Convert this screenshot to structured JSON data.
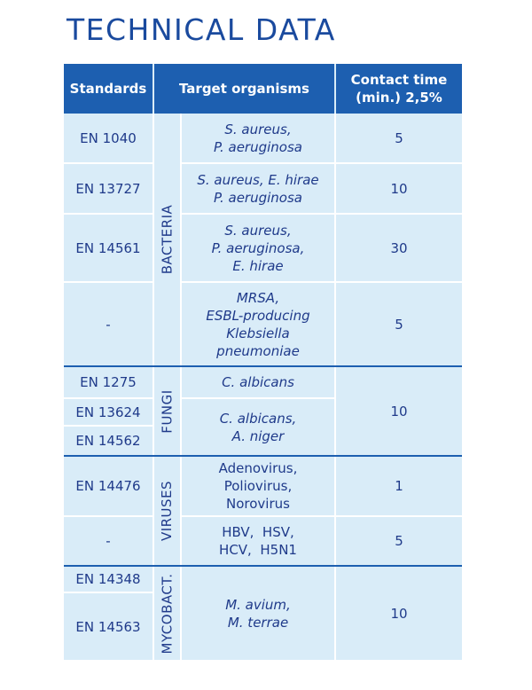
{
  "title": "TECHNICAL DATA",
  "headers": {
    "standards": "Standards",
    "target": "Target organisms",
    "contact_line1": "Contact time",
    "contact_line2": "(min.) 2,5%"
  },
  "groups": {
    "bacteria": "BACTERIA",
    "fungi": "FUNGI",
    "viruses": "VIRUSES",
    "mycobact": "MYCOBACT."
  },
  "rows": {
    "r1": {
      "standard": "EN 1040",
      "organisms": [
        "S. aureus,",
        "P. aeruginosa"
      ],
      "time": "5"
    },
    "r2": {
      "standard": "EN 13727",
      "organisms": [
        "S. aureus, E. hirae",
        "P. aeruginosa"
      ],
      "time": "10"
    },
    "r3": {
      "standard": "EN 14561",
      "organisms": [
        "S. aureus,",
        "P. aeruginosa,",
        "E. hirae"
      ],
      "time": "30"
    },
    "r4": {
      "standard": "-",
      "organisms": [
        "MRSA,",
        "ESBL-producing",
        "Klebsiella",
        "pneumoniae"
      ],
      "time": "5"
    },
    "f1": {
      "standard": "EN 1275",
      "organisms": [
        "C. albicans"
      ]
    },
    "f2": {
      "standard": "EN 13624",
      "organisms": [
        "C. albicans,",
        "A. niger"
      ]
    },
    "f3": {
      "standard": "EN 14562"
    },
    "fungi_time": "10",
    "v1": {
      "standard": "EN 14476",
      "organisms": [
        "Adenovirus,",
        "Poliovirus,",
        "Norovirus"
      ],
      "time": "1"
    },
    "v2": {
      "standard": "-",
      "organisms": [
        "HBV,  HSV,",
        "HCV,  H5N1"
      ],
      "time": "5"
    },
    "m1": {
      "standard": "EN 14348"
    },
    "m2": {
      "standard": "EN 14563"
    },
    "myco_organisms": [
      "M. avium,",
      "M. terrae"
    ],
    "myco_time": "10"
  }
}
